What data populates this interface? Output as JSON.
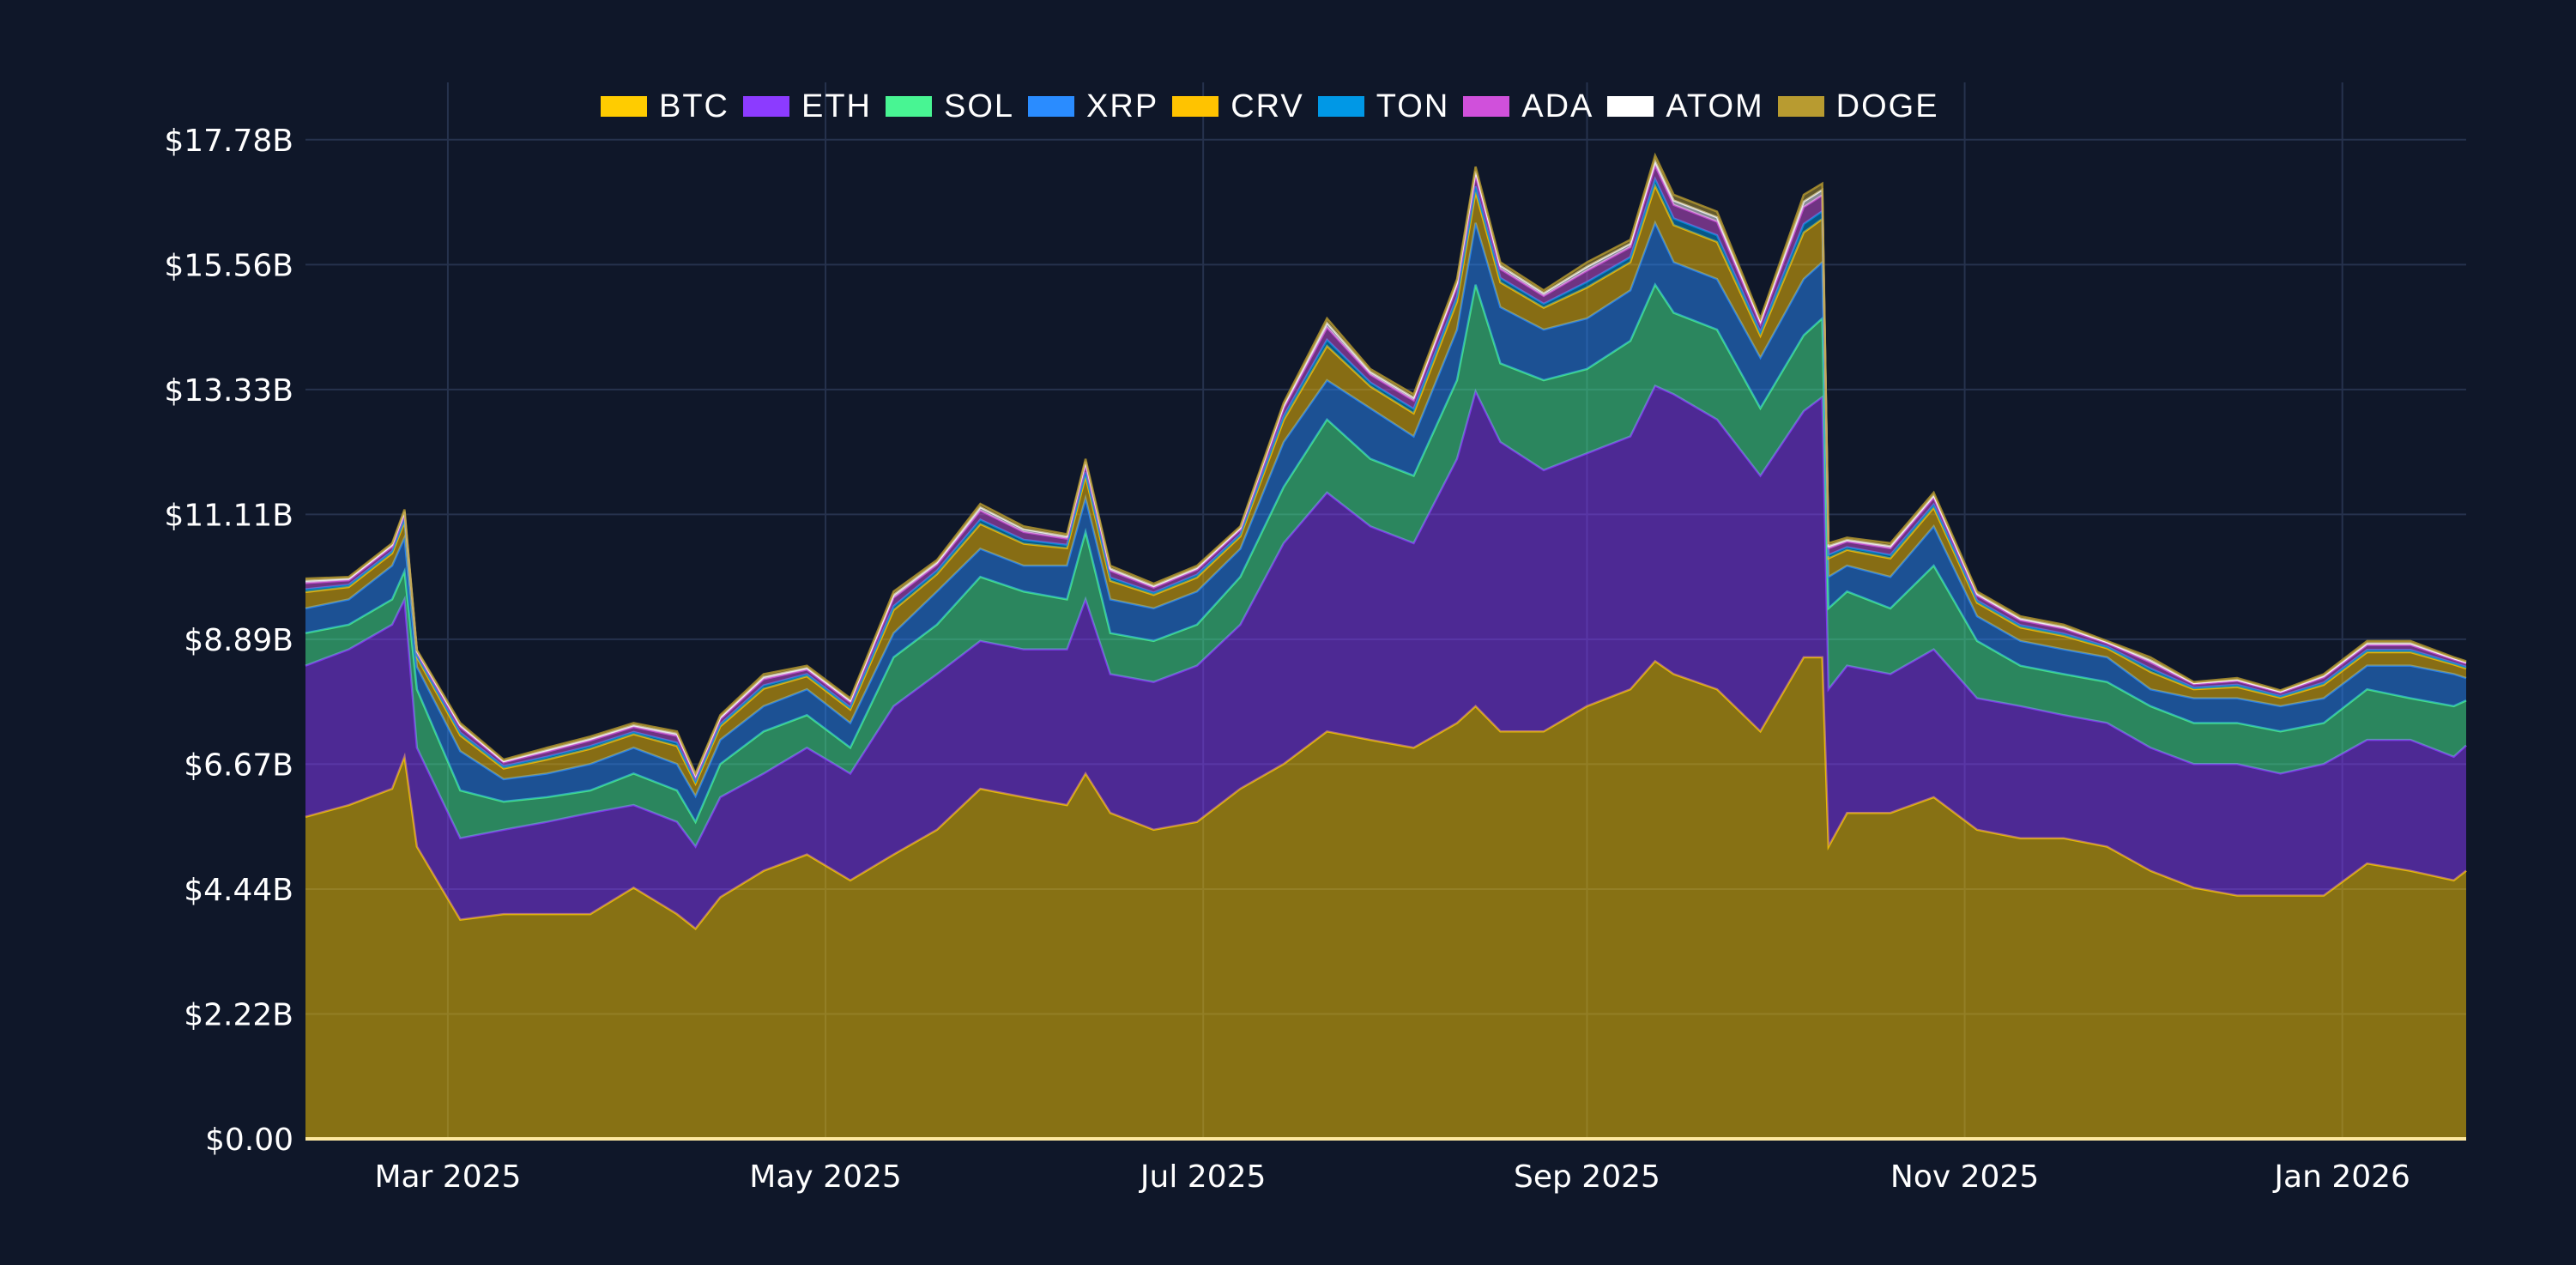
{
  "chart_data": {
    "type": "area",
    "stacked": true,
    "title": "",
    "xlabel": "",
    "ylabel": "",
    "ylim": [
      0,
      18.8
    ],
    "y_unit": "billion USD",
    "grid": true,
    "legend_placement": "top-center",
    "background": "#0f1729",
    "grid_color": "#26324d",
    "x_range": [
      "2025-02-06",
      "2026-01-21"
    ],
    "x_ticks": [
      {
        "date": "2025-03-01",
        "label": "Mar 2025"
      },
      {
        "date": "2025-05-01",
        "label": "May 2025"
      },
      {
        "date": "2025-07-01",
        "label": "Jul 2025"
      },
      {
        "date": "2025-09-01",
        "label": "Sep 2025"
      },
      {
        "date": "2025-11-01",
        "label": "Nov 2025"
      },
      {
        "date": "2026-01-01",
        "label": "Jan 2026"
      }
    ],
    "y_ticks": [
      {
        "value": 0,
        "label": "$0.00"
      },
      {
        "value": 2.2225,
        "label": "$2.22B"
      },
      {
        "value": 4.445,
        "label": "$4.44B"
      },
      {
        "value": 6.6675,
        "label": "$6.67B"
      },
      {
        "value": 8.89,
        "label": "$8.89B"
      },
      {
        "value": 11.1125,
        "label": "$11.11B"
      },
      {
        "value": 13.335,
        "label": "$13.33B"
      },
      {
        "value": 15.5575,
        "label": "$15.56B"
      },
      {
        "value": 17.78,
        "label": "$17.78B"
      }
    ],
    "x": [
      "2025-02-06",
      "2025-02-13",
      "2025-02-20",
      "2025-02-22",
      "2025-02-24",
      "2025-03-03",
      "2025-03-10",
      "2025-03-17",
      "2025-03-24",
      "2025-03-31",
      "2025-04-07",
      "2025-04-10",
      "2025-04-14",
      "2025-04-21",
      "2025-04-28",
      "2025-05-05",
      "2025-05-12",
      "2025-05-19",
      "2025-05-26",
      "2025-06-02",
      "2025-06-09",
      "2025-06-12",
      "2025-06-16",
      "2025-06-23",
      "2025-06-30",
      "2025-07-07",
      "2025-07-14",
      "2025-07-21",
      "2025-07-28",
      "2025-08-04",
      "2025-08-11",
      "2025-08-14",
      "2025-08-18",
      "2025-08-25",
      "2025-09-01",
      "2025-09-08",
      "2025-09-12",
      "2025-09-15",
      "2025-09-22",
      "2025-09-29",
      "2025-10-06",
      "2025-10-09",
      "2025-10-10",
      "2025-10-13",
      "2025-10-20",
      "2025-10-27",
      "2025-11-03",
      "2025-11-10",
      "2025-11-17",
      "2025-11-24",
      "2025-12-01",
      "2025-12-08",
      "2025-12-15",
      "2025-12-22",
      "2025-12-29",
      "2026-01-05",
      "2026-01-12",
      "2026-01-19",
      "2026-01-21"
    ],
    "series": [
      {
        "name": "BTC",
        "color": "#ffcc00",
        "values": [
          5.73,
          5.94,
          6.23,
          6.8,
          5.2,
          3.9,
          4.0,
          4.0,
          4.0,
          4.47,
          4.0,
          3.74,
          4.3,
          4.77,
          5.06,
          4.6,
          5.06,
          5.5,
          6.23,
          6.08,
          5.94,
          6.5,
          5.8,
          5.5,
          5.64,
          6.23,
          6.67,
          7.25,
          7.1,
          6.96,
          7.4,
          7.7,
          7.25,
          7.25,
          7.7,
          8.0,
          8.5,
          8.27,
          8.0,
          7.25,
          8.57,
          8.57,
          5.2,
          5.8,
          5.8,
          6.08,
          5.5,
          5.35,
          5.35,
          5.2,
          4.77,
          4.47,
          4.33,
          4.33,
          4.33,
          4.9,
          4.77,
          4.6,
          4.77
        ]
      },
      {
        "name": "ETH",
        "color": "#8c3bff",
        "values": [
          2.69,
          2.77,
          2.92,
          2.8,
          1.76,
          1.45,
          1.5,
          1.64,
          1.8,
          1.47,
          1.64,
          1.46,
          1.78,
          1.73,
          1.9,
          1.9,
          2.64,
          2.77,
          2.63,
          2.63,
          2.77,
          3.1,
          2.47,
          2.63,
          2.78,
          2.92,
          3.93,
          4.25,
          3.8,
          3.64,
          4.7,
          5.6,
          5.15,
          4.65,
          4.5,
          4.5,
          4.9,
          4.98,
          4.8,
          4.55,
          4.38,
          4.63,
          2.8,
          2.62,
          2.47,
          2.63,
          2.34,
          2.35,
          2.19,
          2.2,
          2.19,
          2.2,
          2.34,
          2.17,
          2.34,
          2.2,
          2.33,
          2.2,
          2.23
        ]
      },
      {
        "name": "SOL",
        "color": "#48f593",
        "values": [
          0.58,
          0.44,
          0.45,
          0.5,
          1.04,
          0.85,
          0.5,
          0.44,
          0.4,
          0.56,
          0.56,
          0.44,
          0.59,
          0.75,
          0.58,
          0.46,
          0.87,
          0.88,
          1.14,
          1.03,
          0.89,
          1.2,
          0.73,
          0.73,
          0.73,
          0.85,
          1.0,
          1.3,
          1.2,
          1.2,
          1.4,
          1.9,
          1.4,
          1.6,
          1.5,
          1.7,
          1.8,
          1.45,
          1.6,
          1.2,
          1.35,
          1.4,
          1.44,
          1.32,
          1.17,
          1.49,
          1.02,
          0.72,
          0.73,
          0.73,
          0.74,
          0.73,
          0.73,
          0.75,
          0.73,
          0.9,
          0.74,
          0.9,
          0.8
        ]
      },
      {
        "name": "XRP",
        "color": "#2a8cff",
        "values": [
          0.44,
          0.45,
          0.6,
          0.6,
          0.4,
          0.7,
          0.4,
          0.42,
          0.47,
          0.46,
          0.47,
          0.46,
          0.43,
          0.45,
          0.46,
          0.44,
          0.43,
          0.59,
          0.5,
          0.46,
          0.6,
          0.6,
          0.6,
          0.58,
          0.59,
          0.5,
          0.8,
          0.7,
          0.9,
          0.7,
          0.9,
          1.1,
          1.0,
          0.9,
          0.9,
          0.9,
          1.1,
          0.9,
          0.9,
          0.9,
          1.0,
          1.0,
          0.56,
          0.46,
          0.56,
          0.7,
          0.44,
          0.44,
          0.44,
          0.44,
          0.3,
          0.44,
          0.44,
          0.45,
          0.44,
          0.42,
          0.58,
          0.57,
          0.4
        ]
      },
      {
        "name": "CRV",
        "color": "#ffc300",
        "values": [
          0.29,
          0.22,
          0.22,
          0.28,
          0.17,
          0.28,
          0.19,
          0.25,
          0.27,
          0.24,
          0.32,
          0.22,
          0.24,
          0.31,
          0.23,
          0.24,
          0.41,
          0.31,
          0.44,
          0.39,
          0.31,
          0.39,
          0.33,
          0.24,
          0.25,
          0.22,
          0.39,
          0.61,
          0.39,
          0.41,
          0.5,
          0.55,
          0.44,
          0.39,
          0.55,
          0.5,
          0.66,
          0.66,
          0.66,
          0.39,
          0.83,
          0.77,
          0.33,
          0.28,
          0.33,
          0.33,
          0.24,
          0.24,
          0.24,
          0.16,
          0.31,
          0.16,
          0.2,
          0.15,
          0.24,
          0.24,
          0.24,
          0.17,
          0.17
        ]
      },
      {
        "name": "TON",
        "color": "#0098e6",
        "values": [
          0.05,
          0.04,
          0.04,
          0.05,
          0.03,
          0.05,
          0.04,
          0.05,
          0.05,
          0.04,
          0.06,
          0.04,
          0.04,
          0.06,
          0.04,
          0.04,
          0.07,
          0.06,
          0.08,
          0.07,
          0.06,
          0.07,
          0.06,
          0.04,
          0.05,
          0.04,
          0.07,
          0.11,
          0.07,
          0.08,
          0.09,
          0.1,
          0.08,
          0.07,
          0.1,
          0.09,
          0.12,
          0.12,
          0.12,
          0.07,
          0.15,
          0.14,
          0.06,
          0.05,
          0.06,
          0.06,
          0.04,
          0.04,
          0.04,
          0.03,
          0.06,
          0.03,
          0.04,
          0.03,
          0.04,
          0.04,
          0.04,
          0.03,
          0.03
        ]
      },
      {
        "name": "ADA",
        "color": "#d050db",
        "values": [
          0.11,
          0.08,
          0.08,
          0.1,
          0.06,
          0.1,
          0.07,
          0.09,
          0.1,
          0.09,
          0.12,
          0.08,
          0.09,
          0.11,
          0.08,
          0.09,
          0.15,
          0.11,
          0.16,
          0.14,
          0.11,
          0.14,
          0.12,
          0.09,
          0.09,
          0.08,
          0.14,
          0.22,
          0.14,
          0.15,
          0.18,
          0.2,
          0.16,
          0.14,
          0.2,
          0.18,
          0.24,
          0.24,
          0.24,
          0.14,
          0.3,
          0.28,
          0.12,
          0.1,
          0.12,
          0.12,
          0.09,
          0.09,
          0.09,
          0.06,
          0.11,
          0.06,
          0.07,
          0.06,
          0.09,
          0.09,
          0.09,
          0.06,
          0.06
        ]
      },
      {
        "name": "ATOM",
        "color": "#ffffff",
        "values": [
          0.04,
          0.03,
          0.03,
          0.03,
          0.02,
          0.03,
          0.02,
          0.03,
          0.03,
          0.03,
          0.04,
          0.03,
          0.03,
          0.04,
          0.03,
          0.03,
          0.05,
          0.04,
          0.06,
          0.05,
          0.04,
          0.05,
          0.04,
          0.03,
          0.03,
          0.03,
          0.05,
          0.08,
          0.05,
          0.05,
          0.06,
          0.07,
          0.06,
          0.05,
          0.07,
          0.06,
          0.08,
          0.08,
          0.08,
          0.05,
          0.1,
          0.1,
          0.04,
          0.03,
          0.04,
          0.04,
          0.03,
          0.03,
          0.03,
          0.02,
          0.04,
          0.02,
          0.02,
          0.02,
          0.03,
          0.03,
          0.03,
          0.02,
          0.02
        ]
      },
      {
        "name": "DOGE",
        "color": "#b89b30",
        "values": [
          0.04,
          0.03,
          0.03,
          0.04,
          0.02,
          0.04,
          0.03,
          0.04,
          0.04,
          0.04,
          0.04,
          0.03,
          0.04,
          0.05,
          0.04,
          0.04,
          0.06,
          0.04,
          0.06,
          0.05,
          0.04,
          0.05,
          0.05,
          0.04,
          0.04,
          0.03,
          0.05,
          0.08,
          0.05,
          0.06,
          0.07,
          0.08,
          0.06,
          0.05,
          0.08,
          0.07,
          0.1,
          0.1,
          0.1,
          0.05,
          0.12,
          0.11,
          0.05,
          0.04,
          0.05,
          0.05,
          0.04,
          0.04,
          0.04,
          0.02,
          0.05,
          0.02,
          0.03,
          0.02,
          0.03,
          0.04,
          0.04,
          0.02,
          0.02
        ]
      }
    ]
  }
}
